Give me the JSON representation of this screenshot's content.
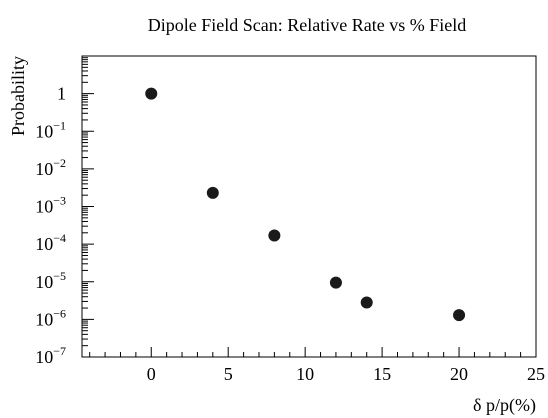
{
  "chart_data": {
    "type": "scatter",
    "title": "Dipole Field Scan: Relative Rate vs % Field",
    "xlabel": "δ p/p(%)",
    "ylabel": "Probability",
    "xlim": [
      -4.5,
      25
    ],
    "ylim": [
      1e-07,
      10
    ],
    "yscale": "log",
    "grid": false,
    "x_ticks": [
      0,
      5,
      10,
      15,
      20,
      25
    ],
    "y_ticks": [
      {
        "value": 1,
        "base": "1",
        "exp": ""
      },
      {
        "value": 0.1,
        "base": "10",
        "exp": "−1"
      },
      {
        "value": 0.01,
        "base": "10",
        "exp": "−2"
      },
      {
        "value": 0.001,
        "base": "10",
        "exp": "−3"
      },
      {
        "value": 0.0001,
        "base": "10",
        "exp": "−4"
      },
      {
        "value": 1e-05,
        "base": "10",
        "exp": "−5"
      },
      {
        "value": 1e-06,
        "base": "10",
        "exp": "−6"
      },
      {
        "value": 1e-07,
        "base": "10",
        "exp": "−7"
      }
    ],
    "series": [
      {
        "marker_color": "#1a1a1a",
        "points": [
          {
            "x": 0,
            "y": 1.0
          },
          {
            "x": 4,
            "y": 0.0023
          },
          {
            "x": 8,
            "y": 0.00017
          },
          {
            "x": 12,
            "y": 9.5e-06
          },
          {
            "x": 14,
            "y": 2.8e-06
          },
          {
            "x": 20,
            "y": 1.3e-06
          }
        ]
      }
    ]
  }
}
